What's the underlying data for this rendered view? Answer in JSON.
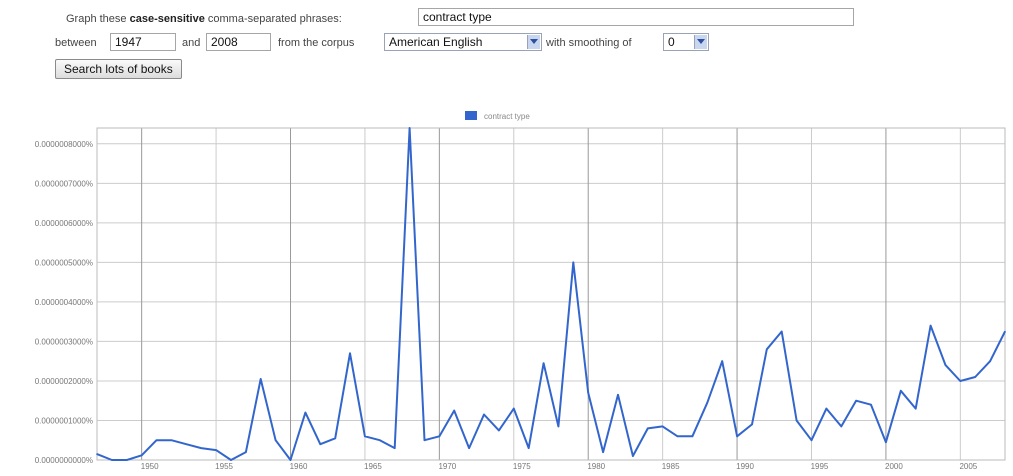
{
  "form": {
    "graph_prefix": "Graph these",
    "case_sensitive": "case-sensitive",
    "graph_suffix": "comma-separated phrases:",
    "phrases_value": "contract type",
    "between_label": "between",
    "start_year": "1947",
    "and_label": "and",
    "end_year": "2008",
    "corpus_label": "from the corpus",
    "corpus_selected": "American English",
    "smoothing_label": "with smoothing of",
    "smoothing_selected": "0",
    "search_button": "Search lots of books"
  },
  "colors": {
    "series": "#3366cc",
    "grid": "#cccccc",
    "major_grid": "#999999"
  },
  "chart_data": {
    "type": "line",
    "title": "",
    "xlabel": "",
    "ylabel": "",
    "legend_position": "top",
    "grid": true,
    "xlim": [
      1947,
      2008
    ],
    "ylim": [
      0,
      8.4e-07
    ],
    "y_ticks": [
      0,
      1e-07,
      2e-07,
      3e-07,
      4e-07,
      5e-07,
      6e-07,
      7e-07,
      8e-07
    ],
    "y_tick_labels": [
      "0.0000000000%",
      "0.0000001000%",
      "0.0000002000%",
      "0.0000003000%",
      "0.0000004000%",
      "0.0000005000%",
      "0.0000006000%",
      "0.0000007000%",
      "0.0000008000%"
    ],
    "x_ticks": [
      1950,
      1955,
      1960,
      1965,
      1970,
      1975,
      1980,
      1985,
      1990,
      1995,
      2000,
      2005
    ],
    "x_tick_labels": [
      "1950",
      "1955",
      "1960",
      "1965",
      "1970",
      "1975",
      "1980",
      "1985",
      "1990",
      "1995",
      "2000",
      "2005"
    ],
    "major_x_grid": [
      1950,
      1960,
      1970,
      1980,
      1990,
      2000
    ],
    "series": [
      {
        "name": "contract type",
        "x": [
          1947,
          1948,
          1949,
          1950,
          1951,
          1952,
          1953,
          1954,
          1955,
          1956,
          1957,
          1958,
          1959,
          1960,
          1961,
          1962,
          1963,
          1964,
          1965,
          1966,
          1967,
          1968,
          1969,
          1970,
          1971,
          1972,
          1973,
          1974,
          1975,
          1976,
          1977,
          1978,
          1979,
          1980,
          1981,
          1982,
          1983,
          1984,
          1985,
          1986,
          1987,
          1988,
          1989,
          1990,
          1991,
          1992,
          1993,
          1994,
          1995,
          1996,
          1997,
          1998,
          1999,
          2000,
          2001,
          2002,
          2003,
          2004,
          2005,
          2006,
          2007,
          2008
        ],
        "values": [
          1.5e-08,
          0.0,
          0.0,
          1.2e-08,
          5e-08,
          5e-08,
          4e-08,
          3e-08,
          2.5e-08,
          0.0,
          2e-08,
          2.05e-07,
          5e-08,
          0.0,
          1.2e-07,
          4e-08,
          5.5e-08,
          2.7e-07,
          6e-08,
          5e-08,
          3e-08,
          8.4e-07,
          5e-08,
          6e-08,
          1.25e-07,
          3e-08,
          1.15e-07,
          7.5e-08,
          1.3e-07,
          3e-08,
          2.45e-07,
          8.5e-08,
          5e-07,
          1.7e-07,
          2e-08,
          1.65e-07,
          1e-08,
          8e-08,
          8.5e-08,
          6e-08,
          6e-08,
          1.45e-07,
          2.5e-07,
          6e-08,
          9e-08,
          2.8e-07,
          3.25e-07,
          1e-07,
          5e-08,
          1.3e-07,
          8.5e-08,
          1.5e-07,
          1.4e-07,
          4.5e-08,
          1.75e-07,
          1.3e-07,
          3.4e-07,
          2.4e-07,
          2e-07,
          2.1e-07,
          2.5e-07,
          3.25e-07
        ]
      }
    ]
  }
}
